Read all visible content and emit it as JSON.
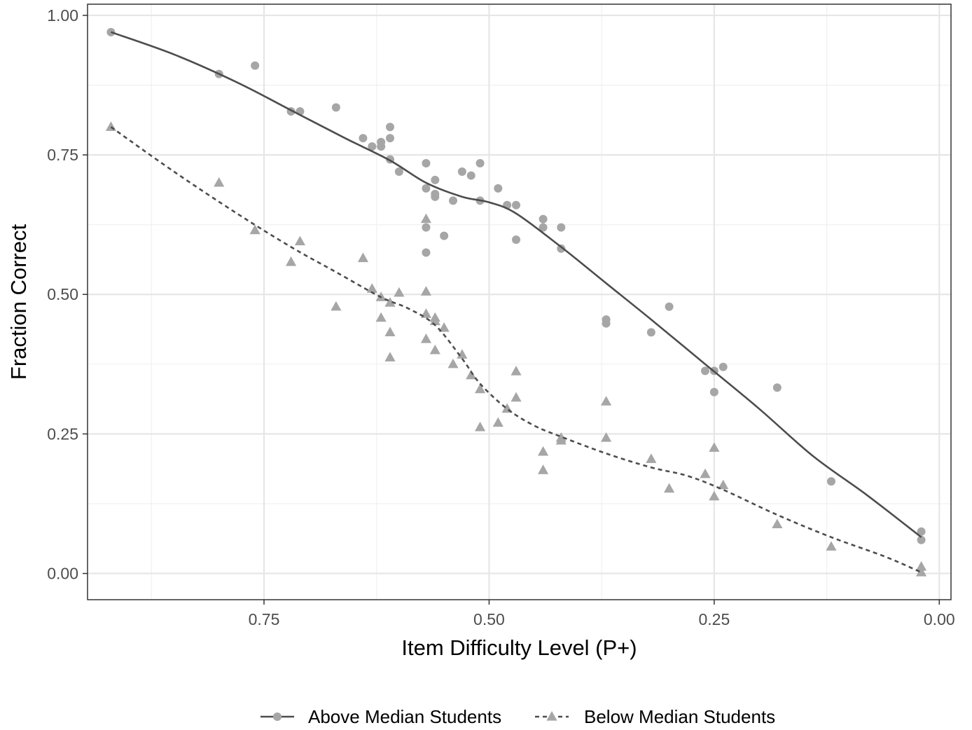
{
  "chart_data": {
    "type": "scatter",
    "xlabel": "Item Difficulty Level (P+)",
    "ylabel": "Fraction Correct",
    "x_reversed": true,
    "xlim": [
      0.946,
      -0.013
    ],
    "ylim": [
      -0.047,
      1.02
    ],
    "x_ticks": [
      0.75,
      0.5,
      0.25,
      0.0
    ],
    "x_tick_labels": [
      "0.75",
      "0.50",
      "0.25",
      "0.00"
    ],
    "x_minor_ticks": [
      0.875,
      0.625,
      0.375,
      0.125
    ],
    "y_ticks": [
      0.0,
      0.25,
      0.5,
      0.75,
      1.0
    ],
    "y_tick_labels": [
      "0.00",
      "0.25",
      "0.50",
      "0.75",
      "1.00"
    ],
    "y_minor_ticks": [
      0.125,
      0.375,
      0.625,
      0.875
    ],
    "grid": true,
    "legend_position": "bottom",
    "point_color": "#a6a6a6",
    "line_color": "#4d4d4d",
    "series": [
      {
        "name": "Above Median Students",
        "marker": "circle",
        "line": "solid",
        "points": [
          [
            0.92,
            0.97
          ],
          [
            0.8,
            0.895
          ],
          [
            0.76,
            0.91
          ],
          [
            0.72,
            0.828
          ],
          [
            0.71,
            0.828
          ],
          [
            0.67,
            0.835
          ],
          [
            0.64,
            0.78
          ],
          [
            0.63,
            0.765
          ],
          [
            0.62,
            0.765
          ],
          [
            0.62,
            0.773
          ],
          [
            0.61,
            0.8
          ],
          [
            0.61,
            0.78
          ],
          [
            0.61,
            0.742
          ],
          [
            0.6,
            0.72
          ],
          [
            0.57,
            0.735
          ],
          [
            0.57,
            0.69
          ],
          [
            0.57,
            0.62
          ],
          [
            0.57,
            0.575
          ],
          [
            0.56,
            0.705
          ],
          [
            0.56,
            0.68
          ],
          [
            0.56,
            0.675
          ],
          [
            0.55,
            0.605
          ],
          [
            0.54,
            0.668
          ],
          [
            0.53,
            0.72
          ],
          [
            0.52,
            0.713
          ],
          [
            0.51,
            0.735
          ],
          [
            0.51,
            0.668
          ],
          [
            0.49,
            0.69
          ],
          [
            0.48,
            0.66
          ],
          [
            0.47,
            0.66
          ],
          [
            0.47,
            0.598
          ],
          [
            0.44,
            0.635
          ],
          [
            0.44,
            0.62
          ],
          [
            0.42,
            0.62
          ],
          [
            0.42,
            0.582
          ],
          [
            0.37,
            0.455
          ],
          [
            0.37,
            0.448
          ],
          [
            0.32,
            0.432
          ],
          [
            0.3,
            0.478
          ],
          [
            0.26,
            0.363
          ],
          [
            0.25,
            0.363
          ],
          [
            0.25,
            0.325
          ],
          [
            0.24,
            0.37
          ],
          [
            0.18,
            0.333
          ],
          [
            0.12,
            0.165
          ],
          [
            0.02,
            0.075
          ],
          [
            0.02,
            0.06
          ]
        ],
        "smooth": [
          [
            0.92,
            0.97
          ],
          [
            0.85,
            0.93
          ],
          [
            0.78,
            0.88
          ],
          [
            0.72,
            0.83
          ],
          [
            0.66,
            0.78
          ],
          [
            0.61,
            0.74
          ],
          [
            0.57,
            0.7
          ],
          [
            0.53,
            0.675
          ],
          [
            0.5,
            0.665
          ],
          [
            0.47,
            0.645
          ],
          [
            0.42,
            0.585
          ],
          [
            0.37,
            0.52
          ],
          [
            0.32,
            0.455
          ],
          [
            0.26,
            0.375
          ],
          [
            0.2,
            0.295
          ],
          [
            0.14,
            0.21
          ],
          [
            0.08,
            0.14
          ],
          [
            0.02,
            0.065
          ]
        ]
      },
      {
        "name": "Below Median Students",
        "marker": "triangle",
        "line": "dashed",
        "points": [
          [
            0.92,
            0.8
          ],
          [
            0.8,
            0.7
          ],
          [
            0.76,
            0.615
          ],
          [
            0.72,
            0.558
          ],
          [
            0.71,
            0.595
          ],
          [
            0.67,
            0.478
          ],
          [
            0.64,
            0.565
          ],
          [
            0.63,
            0.51
          ],
          [
            0.62,
            0.495
          ],
          [
            0.62,
            0.458
          ],
          [
            0.61,
            0.485
          ],
          [
            0.61,
            0.432
          ],
          [
            0.61,
            0.387
          ],
          [
            0.6,
            0.503
          ],
          [
            0.57,
            0.635
          ],
          [
            0.57,
            0.505
          ],
          [
            0.57,
            0.465
          ],
          [
            0.57,
            0.42
          ],
          [
            0.56,
            0.458
          ],
          [
            0.56,
            0.452
          ],
          [
            0.56,
            0.4
          ],
          [
            0.55,
            0.44
          ],
          [
            0.54,
            0.375
          ],
          [
            0.53,
            0.392
          ],
          [
            0.52,
            0.355
          ],
          [
            0.51,
            0.33
          ],
          [
            0.51,
            0.262
          ],
          [
            0.49,
            0.27
          ],
          [
            0.48,
            0.295
          ],
          [
            0.47,
            0.362
          ],
          [
            0.47,
            0.315
          ],
          [
            0.44,
            0.218
          ],
          [
            0.44,
            0.185
          ],
          [
            0.42,
            0.243
          ],
          [
            0.42,
            0.238
          ],
          [
            0.37,
            0.308
          ],
          [
            0.37,
            0.243
          ],
          [
            0.32,
            0.205
          ],
          [
            0.3,
            0.152
          ],
          [
            0.26,
            0.178
          ],
          [
            0.25,
            0.225
          ],
          [
            0.25,
            0.138
          ],
          [
            0.24,
            0.158
          ],
          [
            0.18,
            0.088
          ],
          [
            0.12,
            0.048
          ],
          [
            0.02,
            0.012
          ],
          [
            0.02,
            0.002
          ]
        ],
        "smooth": [
          [
            0.92,
            0.8
          ],
          [
            0.85,
            0.72
          ],
          [
            0.78,
            0.645
          ],
          [
            0.72,
            0.585
          ],
          [
            0.67,
            0.54
          ],
          [
            0.62,
            0.495
          ],
          [
            0.59,
            0.475
          ],
          [
            0.56,
            0.445
          ],
          [
            0.53,
            0.385
          ],
          [
            0.51,
            0.34
          ],
          [
            0.48,
            0.295
          ],
          [
            0.45,
            0.265
          ],
          [
            0.42,
            0.245
          ],
          [
            0.37,
            0.215
          ],
          [
            0.32,
            0.19
          ],
          [
            0.28,
            0.175
          ],
          [
            0.24,
            0.15
          ],
          [
            0.18,
            0.105
          ],
          [
            0.12,
            0.065
          ],
          [
            0.06,
            0.03
          ],
          [
            0.02,
            0.002
          ]
        ]
      }
    ]
  }
}
